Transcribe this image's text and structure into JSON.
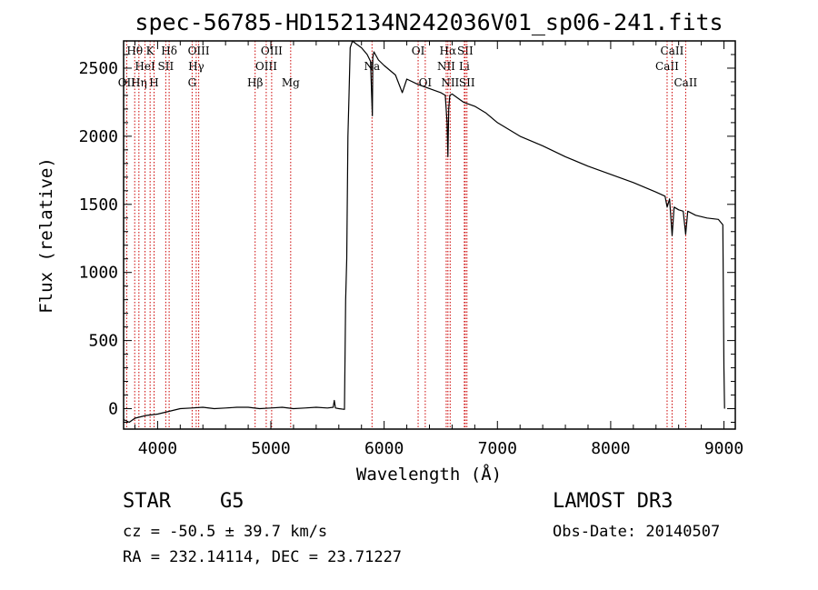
{
  "chart_data": {
    "type": "line",
    "title": "spec-56785-HD152134N242036V01_sp06-241.fits",
    "xlabel": "Wavelength (Å)",
    "ylabel": "Flux (relative)",
    "xlim": [
      3700,
      9100
    ],
    "ylim": [
      -150,
      2700
    ],
    "x_ticks": [
      4000,
      5000,
      6000,
      7000,
      8000,
      9000
    ],
    "y_ticks": [
      0,
      500,
      1000,
      1500,
      2000,
      2500
    ],
    "x_tick_labels": [
      "4000",
      "5000",
      "6000",
      "7000",
      "8000",
      "9000"
    ],
    "y_tick_labels": [
      "0",
      "500",
      "1000",
      "1500",
      "2000",
      "2500"
    ],
    "series": [
      {
        "name": "spectrum",
        "color": "#000000",
        "x": [
          3700,
          3750,
          3800,
          3850,
          3900,
          4000,
          4100,
          4200,
          4300,
          4400,
          4500,
          4600,
          4700,
          4800,
          4900,
          5000,
          5100,
          5200,
          5300,
          5400,
          5500,
          5550,
          5560,
          5570,
          5600,
          5650,
          5660,
          5670,
          5680,
          5690,
          5700,
          5720,
          5750,
          5800,
          5850,
          5880,
          5890,
          5896,
          5900,
          5910,
          5950,
          6000,
          6100,
          6160,
          6200,
          6300,
          6400,
          6500,
          6540,
          6556,
          6563,
          6570,
          6580,
          6600,
          6700,
          6800,
          6900,
          7000,
          7200,
          7400,
          7600,
          7800,
          8000,
          8200,
          8400,
          8480,
          8498,
          8520,
          8542,
          8560,
          8600,
          8640,
          8662,
          8680,
          8750,
          8850,
          8950,
          8990,
          9000,
          9005
        ],
        "values": [
          -80,
          -100,
          -70,
          -60,
          -50,
          -40,
          -20,
          0,
          5,
          10,
          0,
          5,
          10,
          10,
          0,
          5,
          10,
          0,
          5,
          10,
          5,
          10,
          60,
          5,
          0,
          -5,
          800,
          1100,
          2000,
          2300,
          2650,
          2700,
          2680,
          2650,
          2600,
          2550,
          2300,
          2150,
          2580,
          2620,
          2560,
          2520,
          2450,
          2320,
          2420,
          2380,
          2350,
          2320,
          2300,
          2100,
          1850,
          2200,
          2300,
          2310,
          2250,
          2220,
          2170,
          2100,
          2000,
          1930,
          1850,
          1780,
          1720,
          1660,
          1590,
          1560,
          1480,
          1540,
          1270,
          1480,
          1460,
          1450,
          1280,
          1450,
          1420,
          1400,
          1390,
          1350,
          300,
          0
        ]
      }
    ],
    "spectral_lines": [
      {
        "name": "Hθ",
        "x": 3798,
        "row": 1
      },
      {
        "name": "OII",
        "x": 3727,
        "row": 3
      },
      {
        "name": "Hη",
        "x": 3835,
        "row": 3
      },
      {
        "name": "HeI",
        "x": 3889,
        "row": 2
      },
      {
        "name": "K",
        "x": 3934,
        "row": 1
      },
      {
        "name": "H",
        "x": 3969,
        "row": 3
      },
      {
        "name": "SII",
        "x": 4072,
        "row": 2
      },
      {
        "name": "Hδ",
        "x": 4102,
        "row": 1
      },
      {
        "name": "G",
        "x": 4305,
        "row": 3
      },
      {
        "name": "Hγ",
        "x": 4341,
        "row": 2
      },
      {
        "name": "OIII",
        "x": 4363,
        "row": 1
      },
      {
        "name": "Hβ",
        "x": 4861,
        "row": 3
      },
      {
        "name": "OIII",
        "x": 4959,
        "row": 2
      },
      {
        "name": "OIII",
        "x": 5007,
        "row": 1
      },
      {
        "name": "Mg",
        "x": 5175,
        "row": 3
      },
      {
        "name": "Na",
        "x": 5893,
        "row": 2
      },
      {
        "name": "OI",
        "x": 6300,
        "row": 1
      },
      {
        "name": "OI",
        "x": 6363,
        "row": 3
      },
      {
        "name": "NII",
        "x": 6548,
        "row": 2
      },
      {
        "name": "Hα",
        "x": 6563,
        "row": 1
      },
      {
        "name": "NII",
        "x": 6583,
        "row": 3
      },
      {
        "name": "Li",
        "x": 6708,
        "row": 2
      },
      {
        "name": "SII",
        "x": 6716,
        "row": 1
      },
      {
        "name": "SII",
        "x": 6731,
        "row": 3
      },
      {
        "name": "CaII",
        "x": 8498,
        "row": 2
      },
      {
        "name": "CaII",
        "x": 8542,
        "row": 1
      },
      {
        "name": "CaII",
        "x": 8662,
        "row": 3
      }
    ],
    "line_color": "#cc0000"
  },
  "info": {
    "class": "STAR",
    "subclass": "G5",
    "survey": "LAMOST DR3",
    "cz": "cz = -50.5 ± 39.7 km/s",
    "obs_date": "Obs-Date: 20140507",
    "coords": "RA = 232.14114, DEC =  23.71227"
  }
}
